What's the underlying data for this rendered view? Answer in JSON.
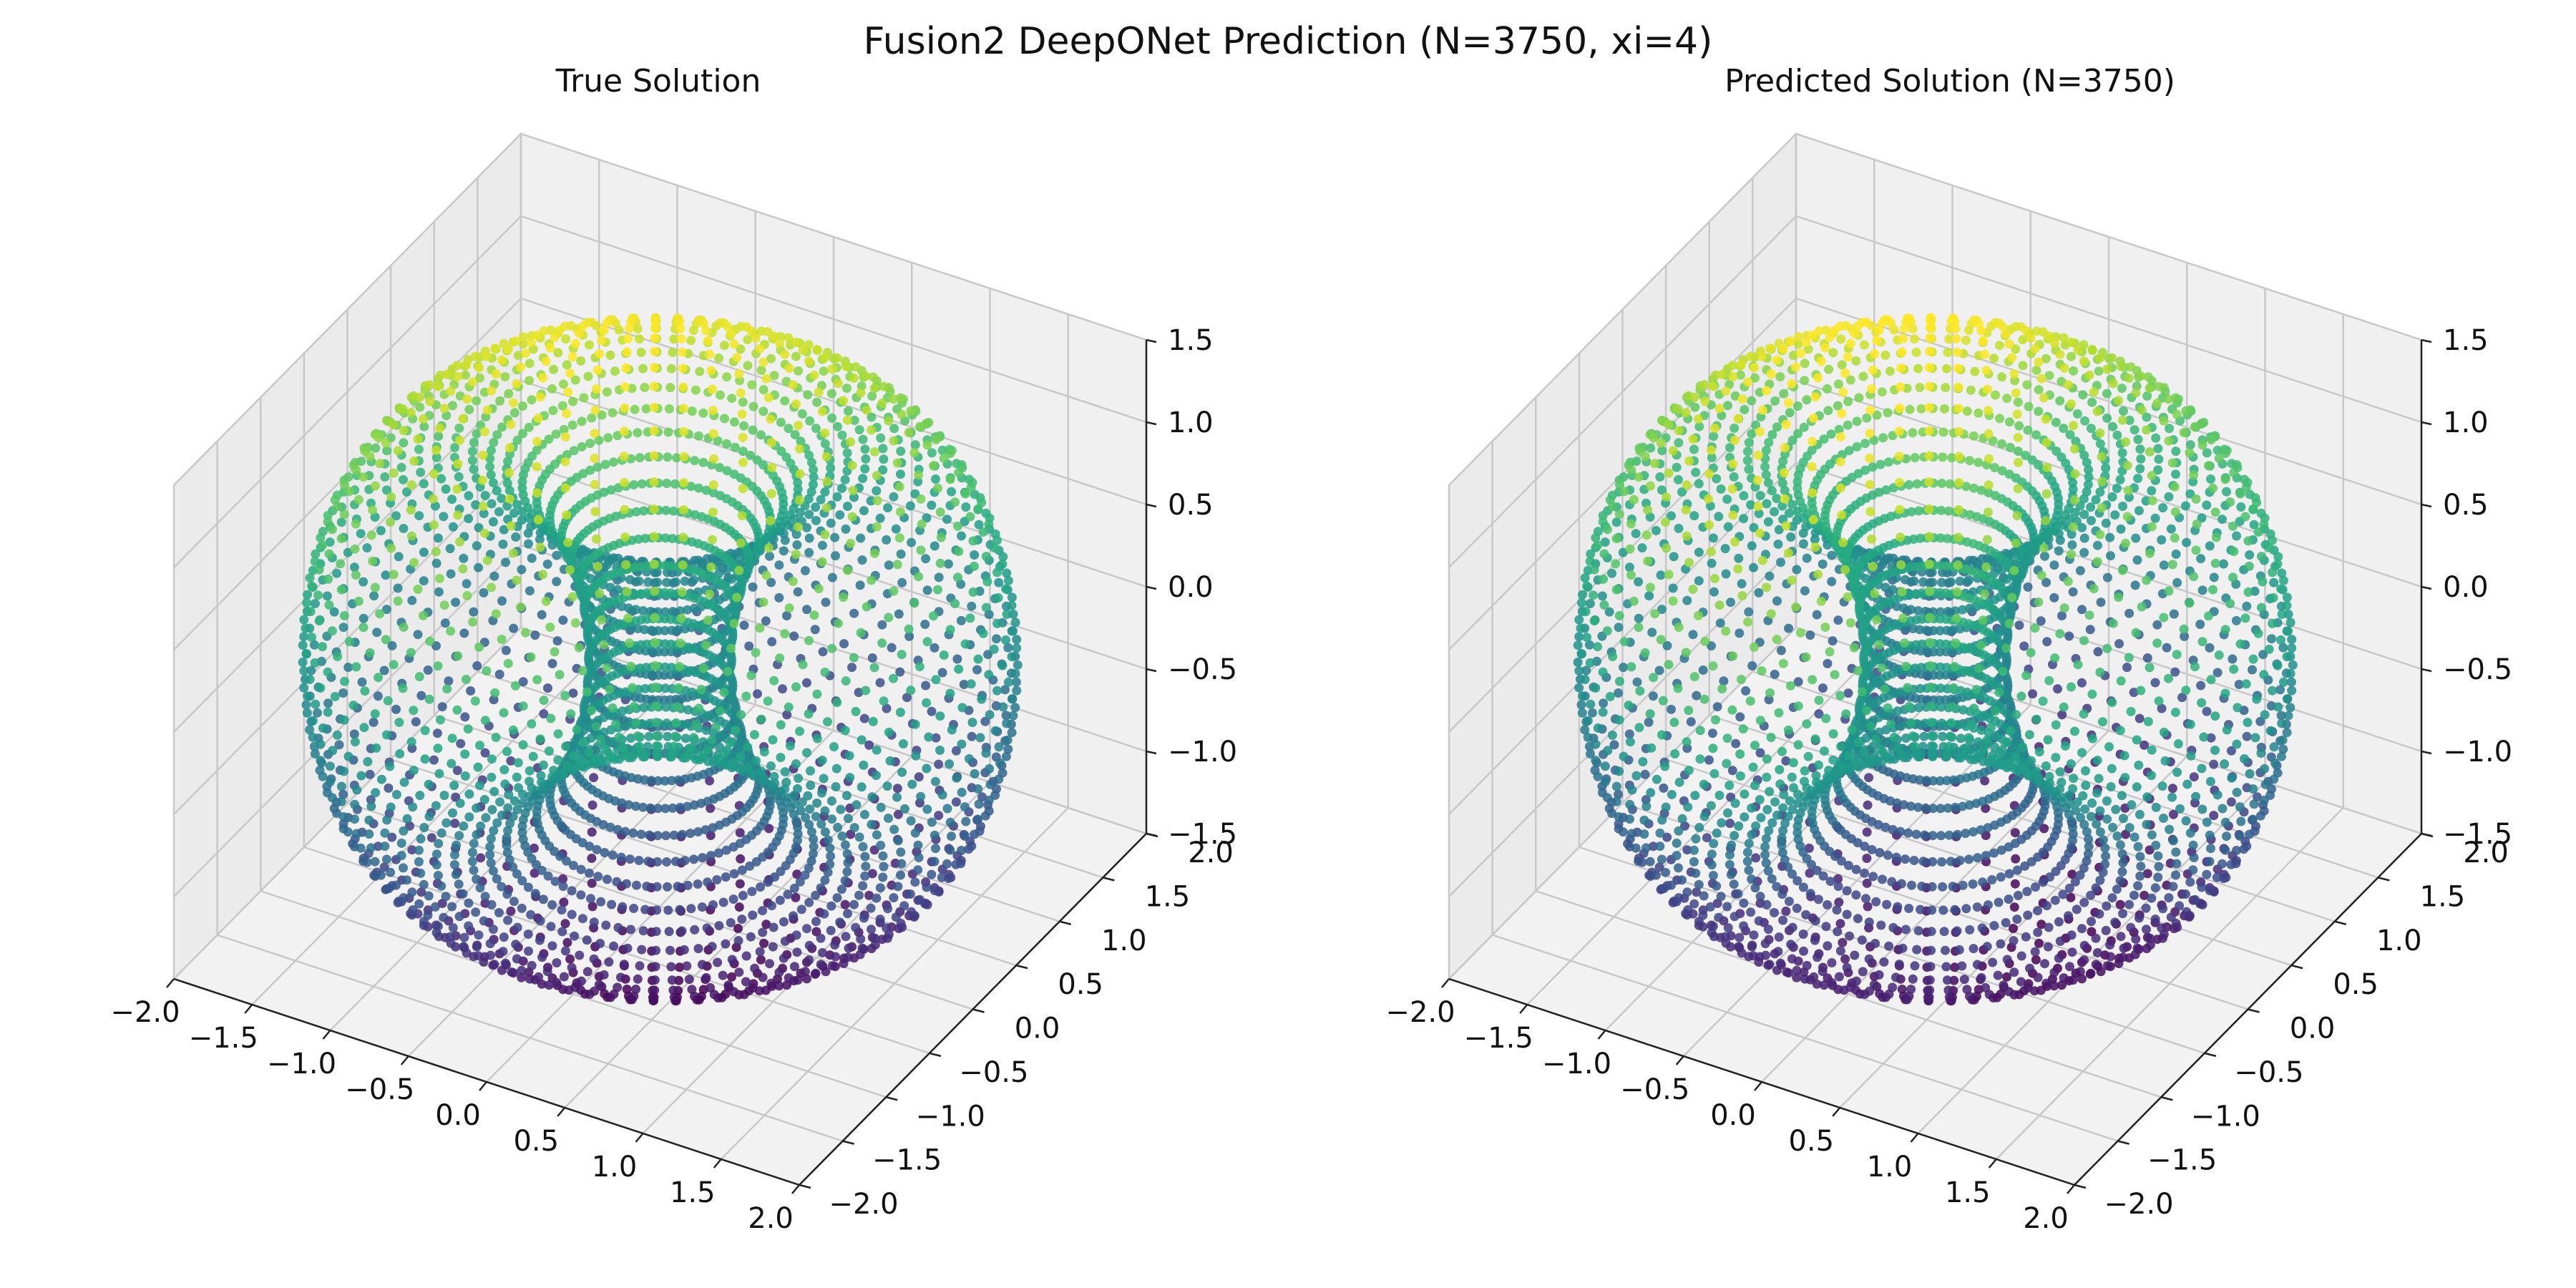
{
  "figure": {
    "title": "Fusion2 DeepONet Prediction (N=3750, xi=4)"
  },
  "chart_data": [
    {
      "type": "scatter",
      "title": "True Solution",
      "xlim": [
        -2.0,
        2.0
      ],
      "ylim": [
        -2.0,
        2.0
      ],
      "zlim": [
        -1.5,
        1.5
      ],
      "x_ticks": [
        "−2.0",
        "−1.5",
        "−1.0",
        "−0.5",
        "0.0",
        "0.5",
        "1.0",
        "1.5",
        "2.0"
      ],
      "y_ticks": [
        "−2.0",
        "−1.5",
        "−1.0",
        "−0.5",
        "0.0",
        "0.5",
        "1.0",
        "1.5",
        "2.0"
      ],
      "z_ticks": [
        "−1.5",
        "−1.0",
        "−0.5",
        "0.0",
        "0.5",
        "1.0",
        "1.5"
      ],
      "x_tick_values": [
        -2.0,
        -1.5,
        -1.0,
        -0.5,
        0.0,
        0.5,
        1.0,
        1.5,
        2.0
      ],
      "y_tick_values": [
        -2.0,
        -1.5,
        -1.0,
        -0.5,
        0.0,
        0.5,
        1.0,
        1.5,
        2.0
      ],
      "z_tick_values": [
        -1.5,
        -1.0,
        -0.5,
        0.0,
        0.5,
        1.0,
        1.5
      ],
      "surface": "torus",
      "major_radius": 1.2,
      "minor_radius": 0.8,
      "colormap": "viridis",
      "grid": true
    },
    {
      "type": "scatter",
      "title": "Predicted Solution (N=3750)",
      "xlim": [
        -2.0,
        2.0
      ],
      "ylim": [
        -2.0,
        2.0
      ],
      "zlim": [
        -1.5,
        1.5
      ],
      "x_ticks": [
        "−2.0",
        "−1.5",
        "−1.0",
        "−0.5",
        "0.0",
        "0.5",
        "1.0",
        "1.5",
        "2.0"
      ],
      "y_ticks": [
        "−2.0",
        "−1.5",
        "−1.0",
        "−0.5",
        "0.0",
        "0.5",
        "1.0",
        "1.5",
        "2.0"
      ],
      "z_ticks": [
        "−1.5",
        "−1.0",
        "−0.5",
        "0.0",
        "0.5",
        "1.0",
        "1.5"
      ],
      "x_tick_values": [
        -2.0,
        -1.5,
        -1.0,
        -0.5,
        0.0,
        0.5,
        1.0,
        1.5,
        2.0
      ],
      "y_tick_values": [
        -2.0,
        -1.5,
        -1.0,
        -0.5,
        0.0,
        0.5,
        1.0,
        1.5,
        2.0
      ],
      "z_tick_values": [
        -1.5,
        -1.0,
        -0.5,
        0.0,
        0.5,
        1.0,
        1.5
      ],
      "surface": "torus",
      "major_radius": 1.2,
      "minor_radius": 0.8,
      "colormap": "viridis",
      "grid": true
    }
  ]
}
